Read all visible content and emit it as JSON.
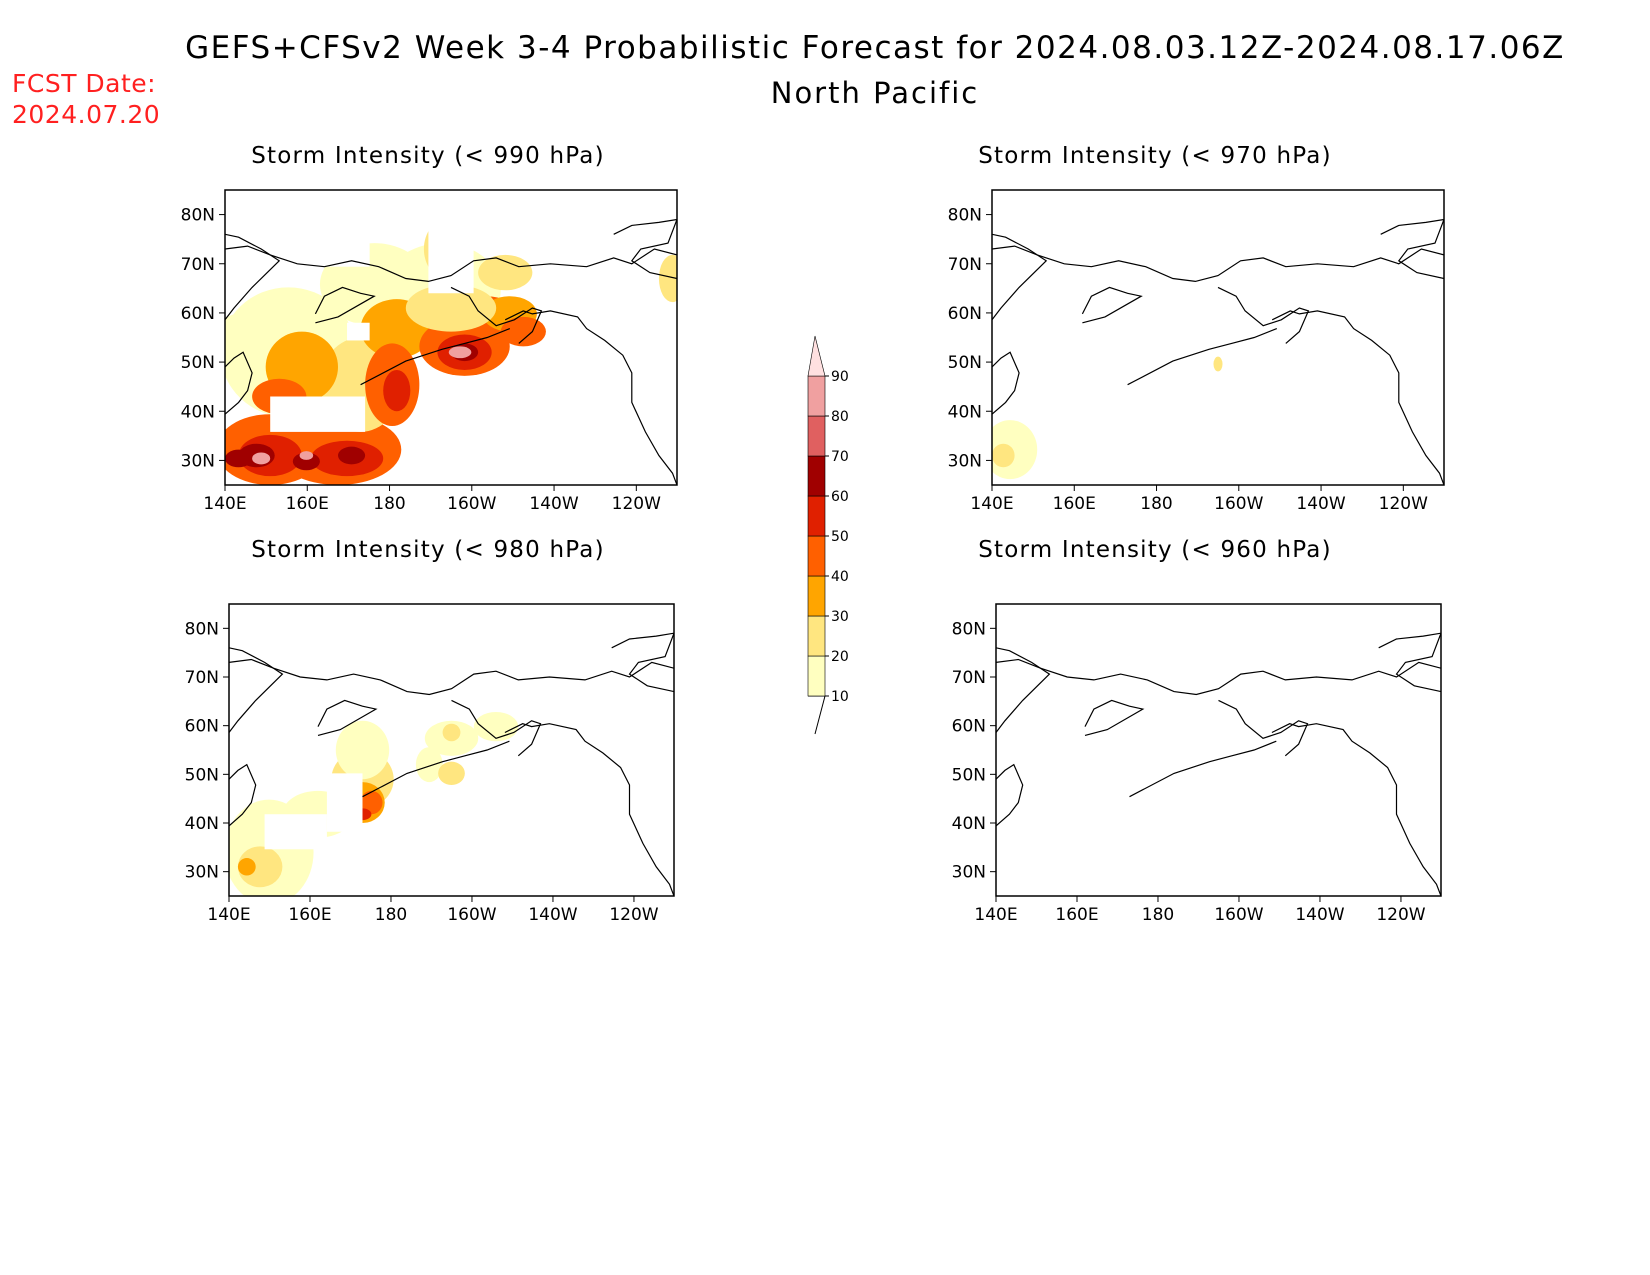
{
  "header": {
    "title": "GEFS+CFSv2 Week 3-4 Probabilistic Forecast for 2024.08.03.12Z-2024.08.17.06Z",
    "subtitle": "North Pacific",
    "fcst_date_label": "FCST Date:",
    "fcst_date_value": "2024.07.20",
    "fcst_color": "#ff2020"
  },
  "panels": [
    {
      "id": "p990",
      "title": "Storm Intensity (< 990 hPa)",
      "intensity": "high"
    },
    {
      "id": "p970",
      "title": "Storm Intensity (< 970 hPa)",
      "intensity": "minimal"
    },
    {
      "id": "p980",
      "title": "Storm Intensity (< 980 hPa)",
      "intensity": "moderate"
    },
    {
      "id": "p960",
      "title": "Storm Intensity (< 960 hPa)",
      "intensity": "none"
    }
  ],
  "axes": {
    "lon_ticks": [
      "140E",
      "160E",
      "180",
      "160W",
      "140W",
      "120W"
    ],
    "lat_ticks": [
      "80N",
      "70N",
      "60N",
      "50N",
      "40N",
      "30N"
    ]
  },
  "colorbar": {
    "levels": [
      "10",
      "20",
      "30",
      "40",
      "50",
      "60",
      "70",
      "80",
      "90"
    ],
    "colors": [
      "#ffffc0",
      "#ffe680",
      "#ffa500",
      "#ff6000",
      "#e02000",
      "#a00000",
      "#e06060",
      "#f0a0a0",
      "#ffe0e0"
    ]
  }
}
